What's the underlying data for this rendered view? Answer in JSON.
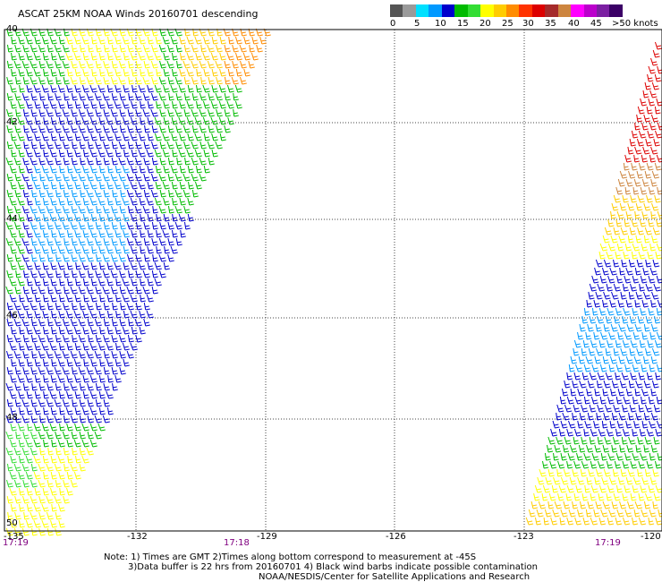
{
  "header": {
    "title": "ASCAT 25KM NOAA Winds 20160701 descending"
  },
  "legend": {
    "colors": [
      "#555555",
      "#9a9a9a",
      "#00e0ff",
      "#0099ff",
      "#0000cc",
      "#00bb00",
      "#33dd33",
      "#ffff00",
      "#ffcc00",
      "#ff8c00",
      "#ff3300",
      "#dd0000",
      "#a52a2a",
      "#cd853f",
      "#ff00ff",
      "#bb00cc",
      "#7b1fa2",
      "#3b0066"
    ],
    "labels": [
      "0",
      "5",
      "10",
      "15",
      "20",
      "25",
      "30",
      "35",
      "40",
      "45",
      ">50 knots"
    ]
  },
  "latitudes": [
    "40",
    "42",
    "44",
    "46",
    "48",
    "50"
  ],
  "longitudes": [
    "-135",
    "-132",
    "-129",
    "-126",
    "-123",
    "-120"
  ],
  "times": [
    "17:19",
    "17:18",
    "17:19"
  ],
  "notes": {
    "line1": "Note: 1) Times are GMT 2)Times along bottom correspond to measurement at -45S",
    "line2": "3)Data buffer is 22 hrs from 20160701 4) Black wind barbs indicate possible contamination",
    "line3": "NOAA/NESDIS/Center for Satellite Applications and Research"
  }
}
